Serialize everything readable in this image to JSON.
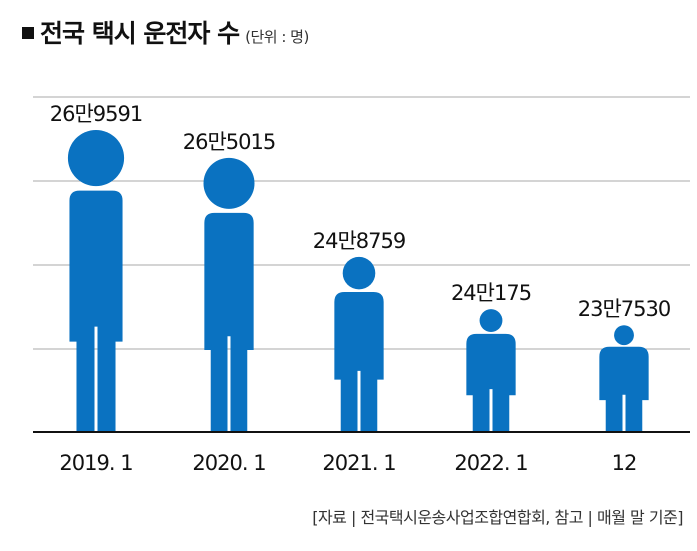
{
  "header": {
    "title": "전국 택시 운전자 수",
    "unit": "(단위 : 명)"
  },
  "source": "[자료 | 전국택시운송사업조합연합회, 참고 | 매월 말 기준]",
  "colors": {
    "figure": "#0a72c1",
    "grid": "#a8a8a8",
    "baseline": "#111111",
    "text": "#111111"
  },
  "chart_data": {
    "type": "bar",
    "icon": "person-icon",
    "categories": [
      "2019. 1",
      "2020. 1",
      "2021. 1",
      "2022. 1",
      "12"
    ],
    "values": [
      269591,
      265015,
      248759,
      240175,
      237530
    ],
    "value_labels": [
      "26만9591",
      "26만5015",
      "24만8759",
      "24만175",
      "23만7530"
    ],
    "title": "전국 택시 운전자 수",
    "unit": "(단위 : 명)",
    "ylim": [
      220000,
      275000
    ],
    "grid": true
  }
}
